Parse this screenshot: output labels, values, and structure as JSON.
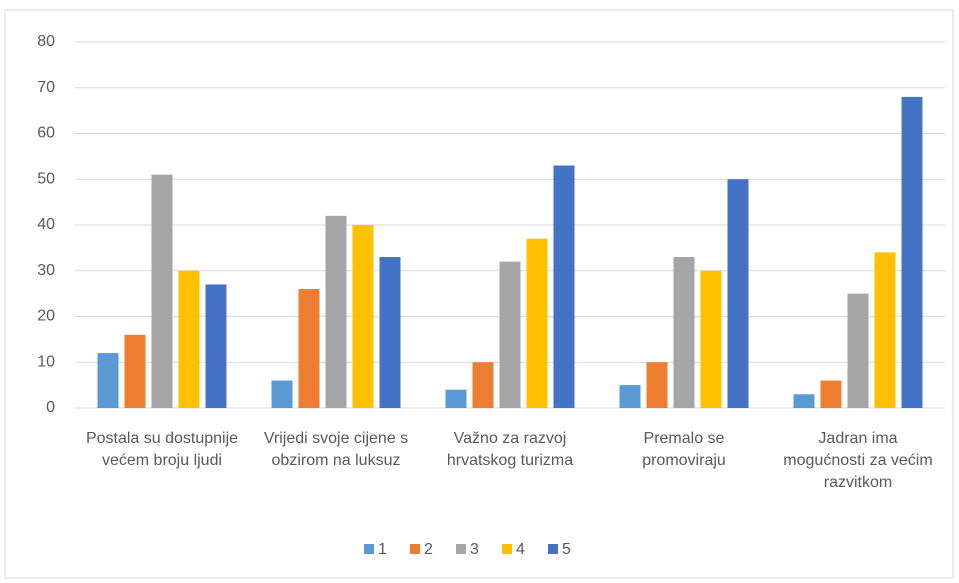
{
  "chart_data": {
    "type": "bar",
    "categories": [
      "Postala su dostupnije većem broju ljudi",
      "Vrijedi svoje cijene s obzirom na luksuz",
      "Važno za razvoj hrvatskog turizma",
      "Premalo se promoviraju",
      "Jadran ima mogućnosti za većim razvitkom"
    ],
    "series": [
      {
        "name": "1",
        "color": "#5b9bd5",
        "values": [
          12,
          6,
          4,
          5,
          3
        ]
      },
      {
        "name": "2",
        "color": "#ed7d31",
        "values": [
          16,
          26,
          10,
          10,
          6
        ]
      },
      {
        "name": "3",
        "color": "#a5a5a5",
        "values": [
          51,
          42,
          32,
          33,
          25
        ]
      },
      {
        "name": "4",
        "color": "#ffc000",
        "values": [
          30,
          40,
          37,
          30,
          34
        ]
      },
      {
        "name": "5",
        "color": "#4472c4",
        "values": [
          27,
          33,
          53,
          50,
          68
        ]
      }
    ],
    "ylim": [
      0,
      80
    ],
    "yticks": [
      0,
      10,
      20,
      30,
      40,
      50,
      60,
      70,
      80
    ],
    "grid": true,
    "legend": "bottom"
  }
}
